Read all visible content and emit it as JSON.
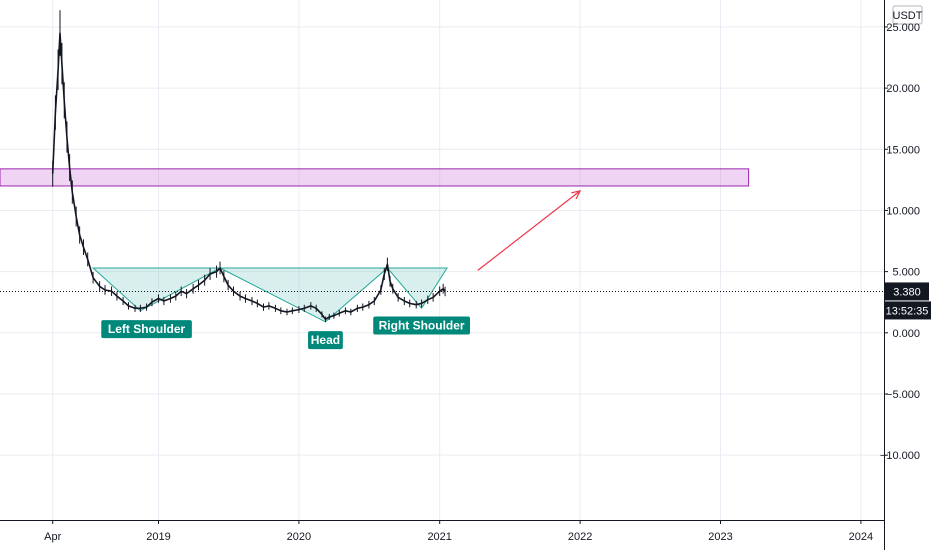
{
  "chart_data": {
    "type": "candlestick",
    "currency": "USDT",
    "ylim": [
      -15.3,
      27.2
    ],
    "y_ticks": [
      25,
      20,
      15,
      10,
      5,
      0,
      -5,
      -10
    ],
    "y_tick_labels": [
      "25.000",
      "20.000",
      "15.000",
      "10.000",
      "5.000",
      "0.000",
      "−5.000",
      "−10.000"
    ],
    "xlim": [
      "2017-11-15",
      "2024-03-01"
    ],
    "x_ticks": [
      {
        "date": "2018-04-01",
        "label": "Apr"
      },
      {
        "date": "2019-01-01",
        "label": "2019"
      },
      {
        "date": "2020-01-01",
        "label": "2020"
      },
      {
        "date": "2021-01-01",
        "label": "2021"
      },
      {
        "date": "2022-01-01",
        "label": "2022"
      },
      {
        "date": "2023-01-01",
        "label": "2023"
      },
      {
        "date": "2024-01-01",
        "label": "2024"
      }
    ],
    "grid": true,
    "last_price": 3.38,
    "last_price_label": "3.380",
    "countdown_label": "13:52:35",
    "price_line": [
      [
        "2018-04-01",
        13.0
      ],
      [
        "2018-04-08",
        18.0
      ],
      [
        "2018-04-15",
        21.5
      ],
      [
        "2018-04-20",
        24.5
      ],
      [
        "2018-04-25",
        22.0
      ],
      [
        "2018-05-01",
        19.0
      ],
      [
        "2018-05-08",
        16.0
      ],
      [
        "2018-05-15",
        13.5
      ],
      [
        "2018-05-22",
        11.5
      ],
      [
        "2018-06-01",
        9.5
      ],
      [
        "2018-06-10",
        8.0
      ],
      [
        "2018-06-20",
        7.0
      ],
      [
        "2018-07-01",
        6.0
      ],
      [
        "2018-07-15",
        4.5
      ],
      [
        "2018-08-01",
        3.8
      ],
      [
        "2018-08-15",
        3.5
      ],
      [
        "2018-09-01",
        3.4
      ],
      [
        "2018-09-15",
        3.0
      ],
      [
        "2018-10-01",
        2.6
      ],
      [
        "2018-10-15",
        2.2
      ],
      [
        "2018-11-01",
        2.0
      ],
      [
        "2018-11-15",
        2.0
      ],
      [
        "2018-12-01",
        2.1
      ],
      [
        "2018-12-15",
        2.5
      ],
      [
        "2019-01-01",
        2.8
      ],
      [
        "2019-01-15",
        2.6
      ],
      [
        "2019-02-01",
        2.8
      ],
      [
        "2019-02-15",
        3.0
      ],
      [
        "2019-03-01",
        3.4
      ],
      [
        "2019-03-15",
        3.2
      ],
      [
        "2019-04-01",
        3.6
      ],
      [
        "2019-04-15",
        3.9
      ],
      [
        "2019-05-01",
        4.3
      ],
      [
        "2019-05-15",
        4.8
      ],
      [
        "2019-06-01",
        5.0
      ],
      [
        "2019-06-10",
        5.3
      ],
      [
        "2019-06-20",
        4.6
      ],
      [
        "2019-07-01",
        3.9
      ],
      [
        "2019-07-15",
        3.4
      ],
      [
        "2019-08-01",
        3.0
      ],
      [
        "2019-08-15",
        2.8
      ],
      [
        "2019-09-01",
        2.6
      ],
      [
        "2019-09-15",
        2.4
      ],
      [
        "2019-10-01",
        2.1
      ],
      [
        "2019-10-15",
        2.2
      ],
      [
        "2019-11-01",
        2.0
      ],
      [
        "2019-11-15",
        1.8
      ],
      [
        "2019-12-01",
        1.7
      ],
      [
        "2019-12-15",
        1.8
      ],
      [
        "2020-01-01",
        1.9
      ],
      [
        "2020-01-15",
        2.0
      ],
      [
        "2020-02-01",
        2.2
      ],
      [
        "2020-02-15",
        2.0
      ],
      [
        "2020-03-01",
        1.5
      ],
      [
        "2020-03-10",
        1.1
      ],
      [
        "2020-03-20",
        1.3
      ],
      [
        "2020-04-01",
        1.4
      ],
      [
        "2020-04-15",
        1.6
      ],
      [
        "2020-05-01",
        1.8
      ],
      [
        "2020-05-15",
        1.7
      ],
      [
        "2020-06-01",
        2.0
      ],
      [
        "2020-06-15",
        2.1
      ],
      [
        "2020-07-01",
        2.3
      ],
      [
        "2020-07-15",
        2.6
      ],
      [
        "2020-08-01",
        3.5
      ],
      [
        "2020-08-10",
        4.8
      ],
      [
        "2020-08-18",
        5.6
      ],
      [
        "2020-08-25",
        4.2
      ],
      [
        "2020-09-01",
        3.6
      ],
      [
        "2020-09-15",
        2.9
      ],
      [
        "2020-10-01",
        2.6
      ],
      [
        "2020-10-15",
        2.4
      ],
      [
        "2020-11-01",
        2.3
      ],
      [
        "2020-11-15",
        2.4
      ],
      [
        "2020-12-01",
        2.7
      ],
      [
        "2020-12-15",
        2.9
      ],
      [
        "2021-01-01",
        3.4
      ],
      [
        "2021-01-10",
        3.6
      ],
      [
        "2021-01-15",
        3.38
      ]
    ],
    "resistance_zone": {
      "from": "2017-11-15",
      "to": "2023-03-15",
      "y_low": 12.0,
      "y_high": 13.4
    },
    "pattern_triangles": [
      [
        [
          "2018-07-15",
          5.3
        ],
        [
          "2018-11-15",
          1.8
        ],
        [
          "2019-06-10",
          5.3
        ]
      ],
      [
        [
          "2019-06-10",
          5.3
        ],
        [
          "2020-03-10",
          0.9
        ],
        [
          "2020-08-18",
          5.3
        ]
      ],
      [
        [
          "2020-08-18",
          5.3
        ],
        [
          "2020-11-15",
          2.0
        ],
        [
          "2021-01-20",
          5.3
        ]
      ]
    ],
    "neckline_y": 5.3,
    "projection_arrow": {
      "from": [
        "2021-04-10",
        5.1
      ],
      "to": [
        "2022-01-01",
        11.6
      ]
    },
    "labels": [
      {
        "text": "Left Shoulder",
        "x": "2018-12-01",
        "y": 0.3
      },
      {
        "text": "Head",
        "x": "2020-03-10",
        "y": -0.6
      },
      {
        "text": "Right Shoulder",
        "x": "2020-11-15",
        "y": 0.6
      }
    ]
  }
}
